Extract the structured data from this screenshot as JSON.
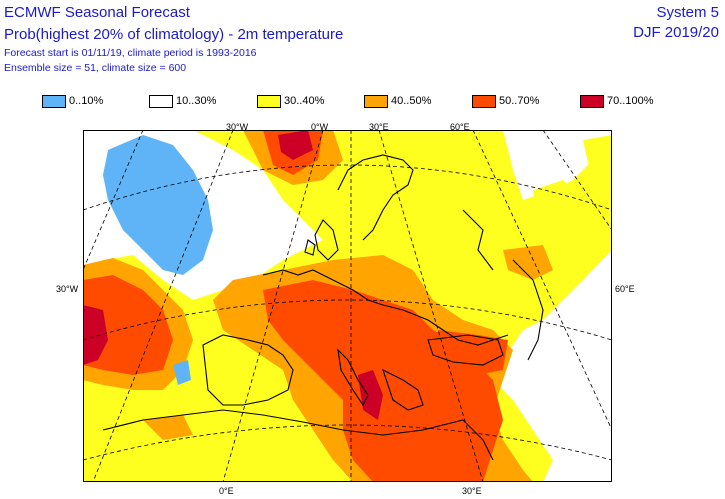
{
  "header": {
    "title": "ECMWF Seasonal Forecast",
    "subtitle": "Prob(highest 20% of climatology) - 2m temperature",
    "forecast_line": "Forecast start is 01/11/19, climate period is 1993-2016",
    "ensemble_line": "Ensemble size = 51, climate size = 600",
    "system": "System 5",
    "season": "DJF 2019/20"
  },
  "legend": [
    {
      "label": "0..10%",
      "color": "#5fb4f7"
    },
    {
      "label": "10..30%",
      "color": "#ffffff"
    },
    {
      "label": "30..40%",
      "color": "#ffff1f"
    },
    {
      "label": "40..50%",
      "color": "#ffa400"
    },
    {
      "label": "50..70%",
      "color": "#ff4b00"
    },
    {
      "label": "70..100%",
      "color": "#cc0026"
    }
  ],
  "map": {
    "grid_labels": {
      "top_30w": "30°W",
      "top_0": "0°W",
      "top_30e": "30°E",
      "top_60e": "60°E",
      "left_30w": "30°W",
      "right_60e": "60°E",
      "bottom_0": "0°E",
      "bottom_30e": "30°E"
    }
  }
}
